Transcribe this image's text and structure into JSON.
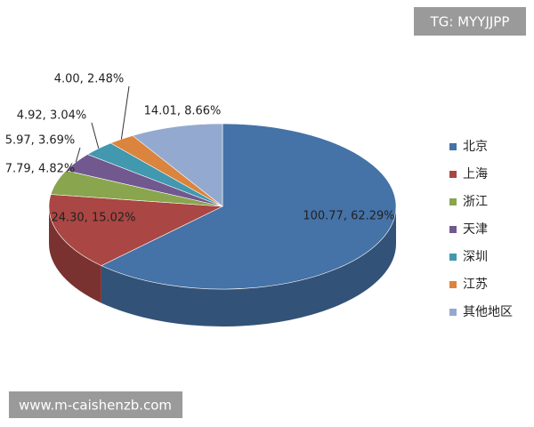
{
  "chart_data": {
    "type": "pie",
    "categories": [
      "北京",
      "上海",
      "浙江",
      "天津",
      "深圳",
      "江苏",
      "其他地区"
    ],
    "values": [
      100.77,
      24.3,
      7.79,
      5.97,
      4.92,
      4.0,
      14.01
    ],
    "value_labels": [
      "100.77, 62.29%",
      "24.30, 15.02%",
      "7.79, 4.82%",
      "5.97, 3.69%",
      "4.92, 3.04%",
      "4.00, 2.48%",
      "14.01, 8.66%"
    ],
    "colors": [
      "#4572a7",
      "#aa4643",
      "#89a54e",
      "#71588f",
      "#4198af",
      "#db843d",
      "#93a9cf"
    ],
    "legend": "right"
  },
  "watermarks": [
    "TG: MYYJJPP",
    "www.m-caishenzb.com"
  ]
}
